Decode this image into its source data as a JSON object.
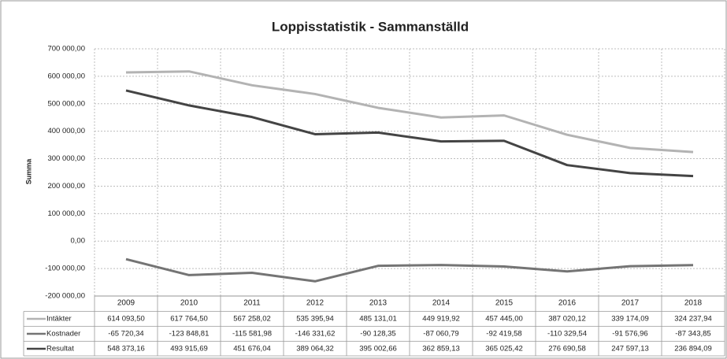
{
  "chart_data": {
    "type": "line",
    "title": "Loppisstatistik - Sammanställd",
    "y_label": "Summa",
    "categories": [
      "2009",
      "2010",
      "2011",
      "2012",
      "2013",
      "2014",
      "2015",
      "2016",
      "2017",
      "2018"
    ],
    "series": [
      {
        "name": "Intäkter",
        "color": "#b3b3b3",
        "values": [
          614093.5,
          617764.5,
          567258.02,
          535395.94,
          485131.01,
          449919.92,
          457445.0,
          387020.12,
          339174.09,
          324237.94
        ],
        "value_labels": [
          "614 093,50",
          "617 764,50",
          "567 258,02",
          "535 395,94",
          "485 131,01",
          "449 919,92",
          "457 445,00",
          "387 020,12",
          "339 174,09",
          "324 237,94"
        ]
      },
      {
        "name": "Kostnader",
        "color": "#747474",
        "values": [
          -65720.34,
          -123848.81,
          -115581.98,
          -146331.62,
          -90128.35,
          -87060.79,
          -92419.58,
          -110329.54,
          -91576.96,
          -87343.85
        ],
        "value_labels": [
          "-65 720,34",
          "-123 848,81",
          "-115 581,98",
          "-146 331,62",
          "-90 128,35",
          "-87 060,79",
          "-92 419,58",
          "-110 329,54",
          "-91 576,96",
          "-87 343,85"
        ]
      },
      {
        "name": "Resultat",
        "color": "#444444",
        "values": [
          548373.16,
          493915.69,
          451676.04,
          389064.32,
          395002.66,
          362859.13,
          365025.42,
          276690.58,
          247597.13,
          236894.09
        ],
        "value_labels": [
          "548 373,16",
          "493 915,69",
          "451 676,04",
          "389 064,32",
          "395 002,66",
          "362 859,13",
          "365 025,42",
          "276 690,58",
          "247 597,13",
          "236 894,09"
        ]
      }
    ],
    "ylim": [
      -200000,
      700000
    ],
    "yticks": [
      {
        "value": -200000,
        "label": "-200 000,00"
      },
      {
        "value": -100000,
        "label": "-100 000,00"
      },
      {
        "value": 0,
        "label": "0,00"
      },
      {
        "value": 100000,
        "label": "100 000,00"
      },
      {
        "value": 200000,
        "label": "200 000,00"
      },
      {
        "value": 300000,
        "label": "300 000,00"
      },
      {
        "value": 400000,
        "label": "400 000,00"
      },
      {
        "value": 500000,
        "label": "500 000,00"
      },
      {
        "value": 600000,
        "label": "600 000,00"
      },
      {
        "value": 700000,
        "label": "700 000,00"
      }
    ],
    "grid": true
  }
}
